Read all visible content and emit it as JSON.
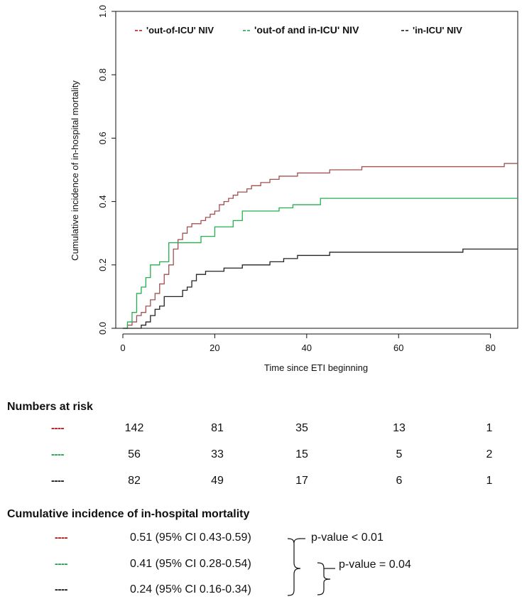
{
  "chart_data": {
    "type": "line",
    "xlabel": "Time since ETI beginning",
    "ylabel": "Cumulative incidence of in-hospital mortality",
    "xlim": [
      0,
      85
    ],
    "ylim": [
      0,
      1.0
    ],
    "xticks": [
      "0",
      "20",
      "40",
      "60",
      "80"
    ],
    "yticks": [
      "0.0",
      "0.2",
      "0.4",
      "0.6",
      "0.8",
      "1.0"
    ],
    "legend_position": "top",
    "series": [
      {
        "name": "'out-of-ICU' NIV",
        "color": "#a05050",
        "step": true,
        "x": [
          0,
          1,
          2,
          3,
          4,
          5,
          6,
          7,
          8,
          9,
          10,
          11,
          12,
          13,
          14,
          15,
          16,
          17,
          18,
          19,
          20,
          21,
          22,
          23,
          24,
          25,
          26,
          27,
          28,
          29,
          30,
          31,
          32,
          33,
          34,
          36,
          38,
          40,
          42,
          45,
          47,
          50,
          52,
          57,
          60,
          65,
          70,
          75,
          80,
          83,
          86
        ],
        "y": [
          0,
          0.01,
          0.02,
          0.04,
          0.05,
          0.07,
          0.09,
          0.11,
          0.14,
          0.17,
          0.2,
          0.25,
          0.28,
          0.3,
          0.32,
          0.33,
          0.33,
          0.34,
          0.35,
          0.36,
          0.37,
          0.39,
          0.4,
          0.41,
          0.42,
          0.43,
          0.43,
          0.44,
          0.45,
          0.45,
          0.46,
          0.46,
          0.47,
          0.47,
          0.48,
          0.48,
          0.49,
          0.49,
          0.49,
          0.5,
          0.5,
          0.5,
          0.51,
          0.51,
          0.51,
          0.51,
          0.51,
          0.51,
          0.51,
          0.52,
          0.52
        ]
      },
      {
        "name": "'out-of and in-ICU' NIV",
        "color": "#22b14c",
        "step": true,
        "x": [
          0,
          1,
          2,
          3,
          4,
          5,
          6,
          8,
          10,
          13,
          17,
          20,
          24,
          26,
          30,
          34,
          37,
          40,
          43,
          50,
          60,
          70,
          80,
          86
        ],
        "y": [
          0,
          0.02,
          0.05,
          0.11,
          0.13,
          0.16,
          0.2,
          0.21,
          0.27,
          0.27,
          0.29,
          0.32,
          0.34,
          0.37,
          0.37,
          0.38,
          0.39,
          0.39,
          0.41,
          0.41,
          0.41,
          0.41,
          0.41,
          0.41
        ]
      },
      {
        "name": "'in-ICU' NIV",
        "color": "#222222",
        "step": true,
        "x": [
          0,
          4,
          5,
          6,
          7,
          8,
          9,
          10,
          13,
          14,
          15,
          16,
          18,
          20,
          22,
          24,
          26,
          30,
          32,
          35,
          38,
          41,
          45,
          50,
          55,
          60,
          65,
          70,
          74,
          80,
          86
        ],
        "y": [
          0,
          0.01,
          0.02,
          0.04,
          0.06,
          0.07,
          0.1,
          0.1,
          0.12,
          0.13,
          0.15,
          0.17,
          0.18,
          0.18,
          0.19,
          0.19,
          0.2,
          0.2,
          0.21,
          0.22,
          0.23,
          0.23,
          0.24,
          0.24,
          0.24,
          0.24,
          0.24,
          0.24,
          0.25,
          0.25,
          0.25
        ]
      }
    ]
  },
  "risk_table": {
    "title": "Numbers at risk",
    "dash": "----",
    "rows": [
      {
        "color": "#aa1111",
        "values": [
          "142",
          "81",
          "35",
          "13",
          "1"
        ]
      },
      {
        "color": "#1aa04a",
        "values": [
          "56",
          "33",
          "15",
          "5",
          "2"
        ]
      },
      {
        "color": "#111111",
        "values": [
          "82",
          "49",
          "17",
          "6",
          "1"
        ]
      }
    ]
  },
  "ci_table": {
    "title": "Cumulative incidence of in-hospital mortality",
    "dash": "----",
    "rows": [
      {
        "color": "#aa1111",
        "text": "0.51 (95% CI 0.43-0.59)"
      },
      {
        "color": "#1aa04a",
        "text": "0.41 (95% CI 0.28-0.54)"
      },
      {
        "color": "#111111",
        "text": "0.24 (95% CI 0.16-0.34)"
      }
    ],
    "pvalues": [
      {
        "text": "p-value < 0.01"
      },
      {
        "text": "p-value = 0.04"
      }
    ]
  }
}
